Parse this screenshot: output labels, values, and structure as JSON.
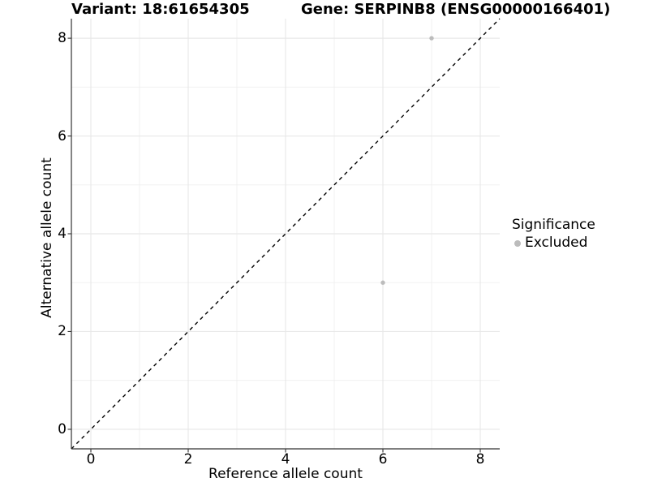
{
  "chart_data": {
    "type": "scatter",
    "title_left": "Variant: 18:61654305",
    "title_right": "Gene: SERPINB8 (ENSG00000166401)",
    "xlabel": "Reference allele count",
    "ylabel": "Alternative allele count",
    "xlim": [
      -0.4,
      8.4
    ],
    "ylim": [
      -0.4,
      8.4
    ],
    "xticks": [
      0,
      2,
      4,
      6,
      8
    ],
    "yticks": [
      0,
      2,
      4,
      6,
      8
    ],
    "xminor": [
      1,
      3,
      5,
      7
    ],
    "yminor": [
      1,
      3,
      5,
      7
    ],
    "grid": "major+minor",
    "reference_line": {
      "type": "identity y=x",
      "style": "dashed",
      "color": "#000000"
    },
    "series": [
      {
        "name": "Excluded",
        "color": "#bcbcbc",
        "points": [
          [
            7,
            8
          ],
          [
            6,
            3
          ]
        ]
      }
    ],
    "legend": {
      "title": "Significance",
      "position": "right",
      "entries": [
        {
          "label": "Excluded",
          "color": "#bcbcbc"
        }
      ]
    }
  },
  "colors": {
    "background": "#ffffff",
    "grid_major": "#e8e8e8",
    "grid_minor": "#efefef",
    "axis_line": "#333333",
    "text": "#000000"
  }
}
